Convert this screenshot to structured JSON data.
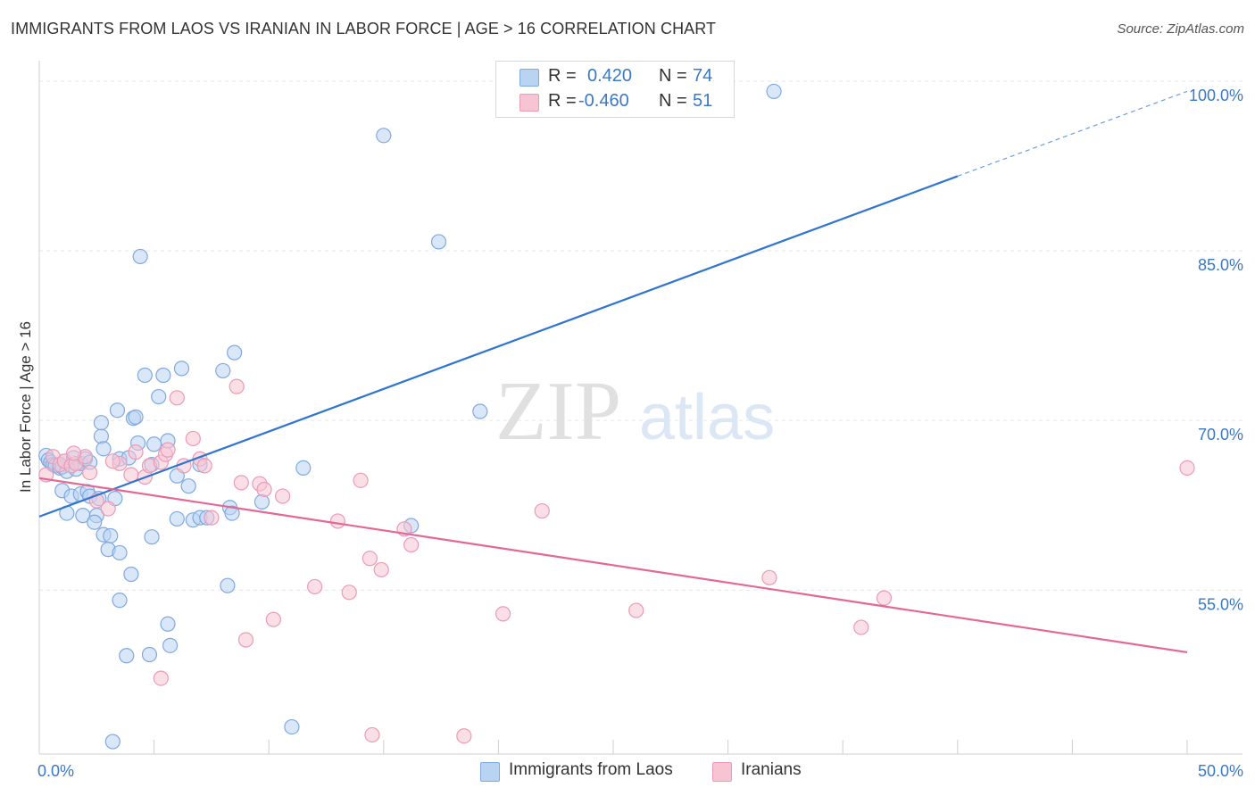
{
  "title": "IMMIGRANTS FROM LAOS VS IRANIAN IN LABOR FORCE | AGE > 16 CORRELATION CHART",
  "source": "Source: ZipAtlas.com",
  "watermark": {
    "zip": "ZIP",
    "atlas": "atlas"
  },
  "legend": {
    "rows": [
      {
        "r_label": "R =",
        "r_value": "0.420",
        "n_label": "N =",
        "n_value": "74"
      },
      {
        "r_label": "R =",
        "r_value": "-0.460",
        "n_label": "N =",
        "n_value": "51"
      }
    ]
  },
  "bottom_legend": {
    "series1": "Immigrants from Laos",
    "series2": "Iranians"
  },
  "colors": {
    "blue_fill": "#b9d3f3",
    "blue_stroke": "#7fa9e0",
    "blue_line": "#2f74d0",
    "pink_fill": "#f7c4d4",
    "pink_stroke": "#ec9ab5",
    "pink_line": "#e46796",
    "axis_text": "#3a78c8",
    "grid": "#e6e6e6"
  },
  "chart_data": {
    "type": "scatter",
    "ylabel": "In Labor Force | Age > 16",
    "xlabel": "",
    "xlim": [
      0,
      50
    ],
    "ylim": [
      40.5,
      101.5
    ],
    "x_tick_labels": [
      {
        "value": 0,
        "label": "0.0%"
      },
      {
        "value": 50,
        "label": "50.0%"
      }
    ],
    "y_tick_labels": [
      {
        "value": 55,
        "label": "55.0%"
      },
      {
        "value": 70,
        "label": "70.0%"
      },
      {
        "value": 85,
        "label": "85.0%"
      },
      {
        "value": 100,
        "label": "100.0%"
      }
    ],
    "x_minor_ticks": [
      0,
      5,
      10,
      15,
      20,
      25,
      30,
      35,
      40,
      45,
      50
    ],
    "grid": true,
    "series": [
      {
        "name": "Immigrants from Laos",
        "color": "#b9d3f3",
        "trend": {
          "x": [
            0,
            40
          ],
          "y": [
            61.5,
            91.6
          ],
          "dashed_to": {
            "x": 50,
            "y": 99.1
          }
        },
        "points": [
          [
            0.3,
            66.9
          ],
          [
            0.4,
            66.5
          ],
          [
            0.5,
            66.3
          ],
          [
            0.6,
            66.1
          ],
          [
            0.7,
            66.0
          ],
          [
            0.9,
            65.8
          ],
          [
            1.0,
            65.9
          ],
          [
            1.1,
            66.4
          ],
          [
            1.2,
            65.5
          ],
          [
            1.5,
            66.7
          ],
          [
            1.6,
            65.7
          ],
          [
            1.8,
            66.2
          ],
          [
            2.0,
            66.6
          ],
          [
            1.0,
            63.8
          ],
          [
            1.4,
            63.3
          ],
          [
            1.8,
            63.5
          ],
          [
            2.1,
            63.7
          ],
          [
            2.2,
            63.3
          ],
          [
            3.3,
            63.1
          ],
          [
            1.2,
            61.8
          ],
          [
            1.9,
            61.6
          ],
          [
            2.5,
            61.6
          ],
          [
            2.4,
            61.0
          ],
          [
            2.8,
            59.9
          ],
          [
            3.1,
            59.8
          ],
          [
            3.0,
            58.6
          ],
          [
            3.5,
            58.3
          ],
          [
            4.0,
            56.4
          ],
          [
            3.5,
            54.1
          ],
          [
            3.8,
            49.2
          ],
          [
            3.2,
            41.6
          ],
          [
            2.7,
            68.6
          ],
          [
            2.7,
            69.8
          ],
          [
            2.8,
            67.5
          ],
          [
            3.4,
            70.9
          ],
          [
            3.5,
            66.6
          ],
          [
            3.9,
            66.7
          ],
          [
            4.1,
            70.2
          ],
          [
            4.2,
            70.3
          ],
          [
            4.3,
            68.0
          ],
          [
            4.6,
            74.0
          ],
          [
            4.9,
            66.1
          ],
          [
            4.9,
            59.7
          ],
          [
            5.0,
            67.9
          ],
          [
            5.2,
            72.1
          ],
          [
            5.4,
            74.0
          ],
          [
            5.6,
            68.2
          ],
          [
            6.0,
            65.1
          ],
          [
            6.2,
            74.6
          ],
          [
            6.5,
            64.2
          ],
          [
            6.7,
            61.2
          ],
          [
            7.0,
            61.4
          ],
          [
            7.0,
            66.1
          ],
          [
            8.0,
            74.4
          ],
          [
            8.5,
            76.0
          ],
          [
            8.3,
            62.3
          ],
          [
            8.4,
            61.8
          ],
          [
            9.7,
            62.8
          ],
          [
            11.5,
            65.8
          ],
          [
            4.4,
            84.5
          ],
          [
            5.6,
            52.0
          ],
          [
            5.7,
            50.1
          ],
          [
            4.8,
            49.3
          ],
          [
            8.2,
            55.4
          ],
          [
            15.0,
            95.2
          ],
          [
            17.4,
            85.8
          ],
          [
            19.2,
            70.8
          ],
          [
            32.0,
            99.1
          ],
          [
            11.0,
            42.9
          ],
          [
            16.2,
            60.7
          ],
          [
            6.0,
            61.3
          ],
          [
            7.3,
            61.4
          ],
          [
            2.2,
            66.3
          ],
          [
            2.6,
            63.1
          ]
        ]
      },
      {
        "name": "Iranians",
        "color": "#f7c4d4",
        "trend": {
          "x": [
            0,
            50
          ],
          "y": [
            64.9,
            49.5
          ]
        },
        "points": [
          [
            0.3,
            65.2
          ],
          [
            0.6,
            66.8
          ],
          [
            0.9,
            66.1
          ],
          [
            1.1,
            66.4
          ],
          [
            1.4,
            66.0
          ],
          [
            1.6,
            66.2
          ],
          [
            2.0,
            66.8
          ],
          [
            2.2,
            65.4
          ],
          [
            1.5,
            67.1
          ],
          [
            2.5,
            62.9
          ],
          [
            3.0,
            62.2
          ],
          [
            3.5,
            66.2
          ],
          [
            4.0,
            65.2
          ],
          [
            4.2,
            67.2
          ],
          [
            4.6,
            65.0
          ],
          [
            4.8,
            66.0
          ],
          [
            5.3,
            66.3
          ],
          [
            5.5,
            67.0
          ],
          [
            5.6,
            67.4
          ],
          [
            6.0,
            72.0
          ],
          [
            6.3,
            66.0
          ],
          [
            6.7,
            68.4
          ],
          [
            7.0,
            66.6
          ],
          [
            7.5,
            61.4
          ],
          [
            8.6,
            73.0
          ],
          [
            8.8,
            64.5
          ],
          [
            9.6,
            64.4
          ],
          [
            9.8,
            63.9
          ],
          [
            10.6,
            63.3
          ],
          [
            12.0,
            55.3
          ],
          [
            13.0,
            61.1
          ],
          [
            13.5,
            54.8
          ],
          [
            14.0,
            64.7
          ],
          [
            14.4,
            57.8
          ],
          [
            14.9,
            56.8
          ],
          [
            15.9,
            60.4
          ],
          [
            16.2,
            59.0
          ],
          [
            10.2,
            52.4
          ],
          [
            9.0,
            50.6
          ],
          [
            5.3,
            47.2
          ],
          [
            14.5,
            42.2
          ],
          [
            18.5,
            42.1
          ],
          [
            20.2,
            52.9
          ],
          [
            21.9,
            62.0
          ],
          [
            26.0,
            53.2
          ],
          [
            31.8,
            56.1
          ],
          [
            35.8,
            51.7
          ],
          [
            36.8,
            54.3
          ],
          [
            50.0,
            65.8
          ],
          [
            3.2,
            66.4
          ],
          [
            7.2,
            66.0
          ]
        ]
      }
    ]
  }
}
